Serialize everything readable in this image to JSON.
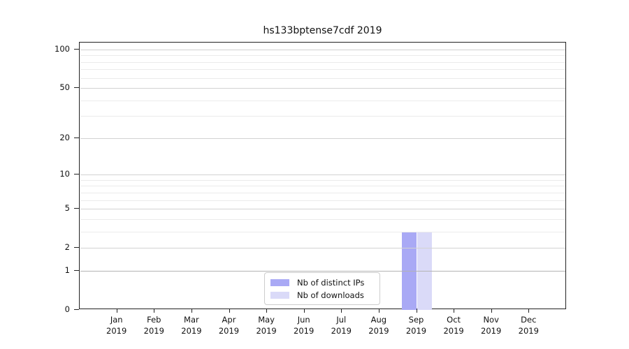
{
  "figure": {
    "title": "hs133bptense7cdf 2019"
  },
  "chart_data": {
    "type": "bar",
    "title": "hs133bptense7cdf 2019",
    "x": {
      "months": [
        "Jan",
        "Feb",
        "Mar",
        "Apr",
        "May",
        "Jun",
        "Jul",
        "Aug",
        "Sep",
        "Oct",
        "Nov",
        "Dec"
      ],
      "year": "2019"
    },
    "categories": [
      "Jan 2019",
      "Feb 2019",
      "Mar 2019",
      "Apr 2019",
      "May 2019",
      "Jun 2019",
      "Jul 2019",
      "Aug 2019",
      "Sep 2019",
      "Oct 2019",
      "Nov 2019",
      "Dec 2019"
    ],
    "series": [
      {
        "name": "Nb of distinct IPs",
        "color": "#a9a9f5",
        "values": [
          0,
          0,
          0,
          0,
          0,
          0,
          0,
          0,
          3,
          0,
          0,
          0
        ]
      },
      {
        "name": "Nb of downloads",
        "color": "#dadaf8",
        "values": [
          0,
          0,
          0,
          0,
          0,
          0,
          0,
          0,
          3,
          0,
          0,
          0
        ]
      }
    ],
    "y_axis": {
      "scale": "log10(1+y)",
      "tick_values": [
        0,
        1,
        2,
        5,
        10,
        20,
        50,
        100
      ],
      "tick_labels": [
        "0",
        "1",
        "2",
        "5",
        "10",
        "20",
        "50",
        "100"
      ],
      "major_grid_values": [
        2,
        5,
        10,
        20,
        50,
        100
      ],
      "minor_grid_values": [
        3,
        4,
        6,
        7,
        8,
        9,
        30,
        40,
        60,
        70,
        80,
        90
      ],
      "emphasis_grid_value": 1,
      "ylim": [
        0,
        112
      ]
    },
    "legend_position": "lower center inside plot",
    "grid": "horizontal",
    "colors": {
      "background": "#ffffff",
      "frame": "#222222",
      "text": "#111111",
      "grid_minor": "#ebebeb",
      "grid_major": "#d2d2d2",
      "grid_emphasis": "#b3b3b3",
      "legend_border": "#cccccc"
    }
  }
}
